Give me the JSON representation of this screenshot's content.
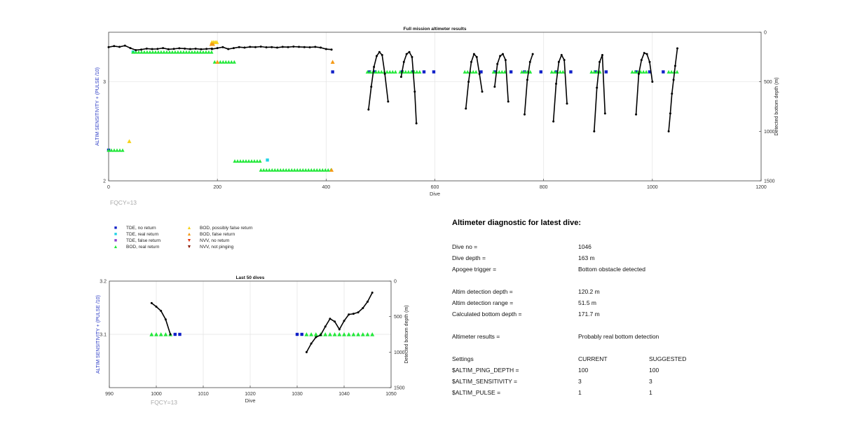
{
  "chart_data": [
    {
      "type": "scatter",
      "title": "Full mission altimeter results",
      "xlabel": "Dive",
      "ylabel": "ALTIM SENSITIVITY + (PULSE /10)",
      "y2label": "Detected bottom depth (m)",
      "xlim": [
        0,
        1200
      ],
      "ylim": [
        2,
        3.5
      ],
      "y2lim": [
        1500,
        0
      ],
      "xticks": [
        "0",
        "200",
        "400",
        "600",
        "800",
        "1000",
        "1200"
      ],
      "yticks": [
        "2",
        "3"
      ],
      "y2ticks": [
        "0",
        "500",
        "1000",
        "1500"
      ],
      "grid": true,
      "footnote": "FQCY=13",
      "series": [
        {
          "name": "TDE, no return",
          "color": "#1020c8",
          "marker": "square",
          "x": [
            0,
            412,
            480,
            490,
            540,
            560,
            580,
            598,
            685,
            710,
            740,
            765,
            795,
            824,
            850,
            895,
            915,
            970,
            995,
            1020
          ],
          "y": [
            2.31,
            3.1,
            3.1,
            3.1,
            3.1,
            3.1,
            3.1,
            3.1,
            3.1,
            3.1,
            3.1,
            3.1,
            3.1,
            3.1,
            3.1,
            3.1,
            3.1,
            3.1,
            3.1,
            3.1
          ]
        },
        {
          "name": "TDE, real return",
          "color": "#22d3e6",
          "marker": "square",
          "x": [
            45,
            292
          ],
          "y": [
            3.3,
            2.21
          ]
        },
        {
          "name": "BOD, real return",
          "color": "#22e83a",
          "marker": "triangle",
          "segments": [
            {
              "x0": 0,
              "x1": 30,
              "y": 2.31
            },
            {
              "x0": 45,
              "x1": 190,
              "y": 3.3
            },
            {
              "x0": 195,
              "x1": 235,
              "y": 3.2
            },
            {
              "x0": 232,
              "x1": 280,
              "y": 2.2
            },
            {
              "x0": 280,
              "x1": 410,
              "y": 2.11
            },
            {
              "x0": 476,
              "x1": 530,
              "y": 3.1
            },
            {
              "x0": 536,
              "x1": 575,
              "y": 3.1
            },
            {
              "x0": 655,
              "x1": 678,
              "y": 3.1
            },
            {
              "x0": 708,
              "x1": 733,
              "y": 3.1
            },
            {
              "x0": 760,
              "x1": 780,
              "y": 3.1
            },
            {
              "x0": 815,
              "x1": 840,
              "y": 3.1
            },
            {
              "x0": 888,
              "x1": 905,
              "y": 3.1
            },
            {
              "x0": 963,
              "x1": 990,
              "y": 3.1
            },
            {
              "x0": 1030,
              "x1": 1048,
              "y": 3.1
            }
          ]
        },
        {
          "name": "BOD, possibly false return",
          "color": "#f6d21a",
          "marker": "triangle",
          "x": [
            38,
            190,
            193,
            196,
            199
          ],
          "y": [
            2.4,
            3.4,
            3.4,
            3.4,
            3.4
          ]
        },
        {
          "name": "BOD, false return",
          "color": "#f59a16",
          "marker": "triangle",
          "x": [
            412,
            410,
            200,
            189,
            192
          ],
          "y": [
            3.2,
            2.11,
            3.2,
            3.38,
            3.38
          ]
        },
        {
          "name": "Detected bottom depth",
          "color": "#000000",
          "marker": "dot",
          "segments": [
            {
              "x": [
                0,
                10,
                20,
                30,
                40,
                50,
                60,
                70,
                80,
                90,
                100,
                110,
                120,
                130,
                140,
                150,
                160,
                170,
                180,
                190
              ],
              "depth": [
                150,
                140,
                148,
                135,
                160,
                180,
                175,
                165,
                170,
                168,
                160,
                172,
                168,
                162,
                165,
                170,
                166,
                172,
                168,
                165
              ]
            },
            {
              "x": [
                190,
                200,
                210,
                220,
                230,
                240,
                250,
                260,
                270,
                280,
                290,
                300,
                310,
                320,
                330,
                340,
                350,
                360,
                370,
                380,
                390,
                400,
                410
              ],
              "depth": [
                170,
                160,
                150,
                170,
                160,
                150,
                155,
                148,
                150,
                145,
                152,
                150,
                155,
                148,
                150,
                145,
                148,
                150,
                152,
                148,
                155,
                170,
                175
              ]
            },
            {
              "x": [
                478,
                483,
                488,
                493,
                498,
                503,
                508,
                514
              ],
              "depth": [
                780,
                550,
                350,
                240,
                200,
                230,
                420,
                700
              ]
            },
            {
              "x": [
                538,
                543,
                548,
                553,
                558,
                563,
                566
              ],
              "depth": [
                450,
                300,
                220,
                200,
                250,
                600,
                920
              ]
            },
            {
              "x": [
                657,
                662,
                667,
                672,
                677,
                682,
                687
              ],
              "depth": [
                770,
                500,
                300,
                220,
                250,
                420,
                600
              ]
            },
            {
              "x": [
                710,
                715,
                720,
                725,
                730,
                735
              ],
              "depth": [
                550,
                320,
                240,
                220,
                280,
                700
              ]
            },
            {
              "x": [
                765,
                770,
                775,
                780
              ],
              "depth": [
                830,
                480,
                300,
                220
              ]
            },
            {
              "x": [
                818,
                823,
                828,
                833,
                838,
                843
              ],
              "depth": [
                900,
                520,
                300,
                230,
                280,
                720
              ]
            },
            {
              "x": [
                893,
                898,
                903,
                908,
                913
              ],
              "depth": [
                1000,
                560,
                300,
                230,
                820
              ]
            },
            {
              "x": [
                970,
                975,
                980,
                985,
                990,
                995,
                1000
              ],
              "depth": [
                830,
                420,
                280,
                210,
                220,
                300,
                500
              ]
            },
            {
              "x": [
                1030,
                1033,
                1036,
                1039,
                1042,
                1046
              ],
              "depth": [
                1000,
                820,
                620,
                480,
                340,
                163
              ]
            }
          ]
        }
      ]
    },
    {
      "type": "scatter",
      "title": "Last 50 dives",
      "xlabel": "Dive",
      "ylabel": "ALTIM SENSITIVITY + (PULSE /10)",
      "y2label": "Detected bottom depth (m)",
      "xlim": [
        990,
        1050
      ],
      "ylim": [
        3,
        3.2
      ],
      "y2lim": [
        1500,
        0
      ],
      "xticks": [
        "990",
        "1000",
        "1010",
        "1020",
        "1030",
        "1040",
        "1050"
      ],
      "yticks": [
        "3.1",
        "3.2"
      ],
      "y2ticks": [
        "0",
        "500",
        "1000",
        "1500"
      ],
      "grid": true,
      "footnote": "FQCY=13",
      "series": [
        {
          "name": "TDE, no return",
          "color": "#1020c8",
          "marker": "square",
          "x": [
            1004,
            1005,
            1030,
            1031
          ],
          "y": [
            3.1,
            3.1,
            3.1,
            3.1
          ]
        },
        {
          "name": "BOD, real return",
          "color": "#22e83a",
          "marker": "triangle",
          "x": [
            999,
            1000,
            1001,
            1002,
            1003,
            1032,
            1033,
            1034,
            1035,
            1036,
            1037,
            1038,
            1039,
            1040,
            1041,
            1042,
            1043,
            1044,
            1045,
            1046
          ],
          "y": [
            3.1,
            3.1,
            3.1,
            3.1,
            3.1,
            3.1,
            3.1,
            3.1,
            3.1,
            3.1,
            3.1,
            3.1,
            3.1,
            3.1,
            3.1,
            3.1,
            3.1,
            3.1,
            3.1,
            3.1
          ]
        },
        {
          "name": "Detected bottom depth",
          "color": "#000000",
          "marker": "dot",
          "segments": [
            {
              "x": [
                999,
                1000,
                1001,
                1002,
                1003
              ],
              "depth": [
                310,
                360,
                420,
                540,
                750
              ]
            },
            {
              "x": [
                1032,
                1033,
                1034,
                1035,
                1036,
                1037,
                1038,
                1039,
                1040,
                1041,
                1042,
                1043,
                1044,
                1045,
                1046
              ],
              "depth": [
                1000,
                880,
                790,
                760,
                640,
                530,
                570,
                680,
                560,
                470,
                460,
                440,
                380,
                290,
                163
              ]
            }
          ]
        }
      ]
    }
  ],
  "legend": {
    "items": [
      {
        "label": "TDE, no return",
        "symbol": "■",
        "color": "#1020c8"
      },
      {
        "label": "TDE, real return",
        "symbol": "■",
        "color": "#22d3e6"
      },
      {
        "label": "TDE, false return",
        "symbol": "■",
        "color": "#8a3fd0"
      },
      {
        "label": "BOD, real return",
        "symbol": "▲",
        "color": "#22e83a"
      },
      {
        "label": "BOD, possibly false return",
        "symbol": "▲",
        "color": "#f6d21a"
      },
      {
        "label": "BOD, false return",
        "symbol": "▲",
        "color": "#f59a16"
      },
      {
        "label": "NVV, no return",
        "symbol": "▼",
        "color": "#e0300e"
      },
      {
        "label": "NVV, not pinging",
        "symbol": "▼",
        "color": "#8a1a08"
      }
    ]
  },
  "diagnostic": {
    "title": "Altimeter diagnostic for latest dive:",
    "dive_no_label": "Dive no =",
    "dive_no": "1046",
    "dive_depth_label": "Dive depth =",
    "dive_depth": "163 m",
    "apogee_label": "Apogee trigger =",
    "apogee": "Bottom obstacle detected",
    "detect_depth_label": "Altim detection depth =",
    "detect_depth": "120.2 m",
    "detect_range_label": "Altim detection range =",
    "detect_range": "51.5 m",
    "calc_depth_label": "Calculated bottom depth =",
    "calc_depth": "171.7 m",
    "results_label": "Altimeter results =",
    "results": "Probably real bottom detection",
    "settings_label": "Settings",
    "current_label": "CURRENT",
    "suggested_label": "SUGGESTED",
    "ping_label": "$ALTIM_PING_DEPTH =",
    "ping_current": "100",
    "ping_suggested": "100",
    "sens_label": "$ALTIM_SENSITIVITY =",
    "sens_current": "3",
    "sens_suggested": "3",
    "pulse_label": "$ALTIM_PULSE =",
    "pulse_current": "1",
    "pulse_suggested": "1"
  }
}
